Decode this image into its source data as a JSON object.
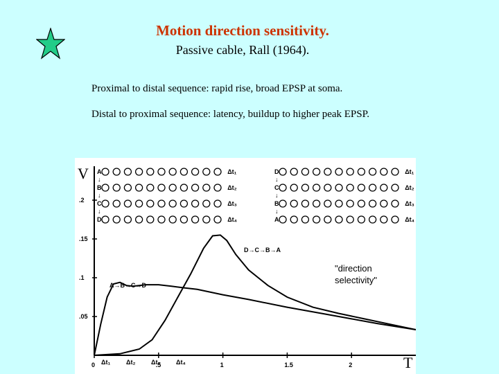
{
  "slide": {
    "title": "Motion direction sensitivity.",
    "subtitle": "Passive cable, Rall (1964).",
    "line1": "Proximal to distal sequence:  rapid rise, broad EPSP at soma.",
    "line2": "Distal to proximal sequence: latency, buildup to higher peak EPSP.",
    "star_icon": "green-star-icon",
    "annotation_line1": "\"direction",
    "annotation_line2": "selectivity\""
  },
  "colors": {
    "background": "#ccffff",
    "title": "#cc3300",
    "star": "#22cc88"
  },
  "figure": {
    "y_axis_symbol": "V",
    "x_axis_symbol": "T",
    "left_panel": {
      "rows": [
        {
          "letter": "A",
          "dt": "Δt₁"
        },
        {
          "letter": "B",
          "dt": "Δt₂"
        },
        {
          "letter": "C",
          "dt": "Δt₃"
        },
        {
          "letter": "D",
          "dt": "Δt₄"
        }
      ]
    },
    "right_panel": {
      "rows": [
        {
          "letter": "D",
          "dt": "Δt₁"
        },
        {
          "letter": "C",
          "dt": "Δt₂"
        },
        {
          "letter": "B",
          "dt": "Δt₃"
        },
        {
          "letter": "A",
          "dt": "Δt₄"
        }
      ]
    },
    "label_abcd": "A→B→C→D",
    "label_dcba": "D→C→B→A"
  },
  "chart_data": {
    "type": "line",
    "xlabel": "T",
    "ylabel": "V",
    "x_ticks": [
      "0",
      ".5",
      "1",
      "1.5",
      "2"
    ],
    "y_ticks": [
      ".05",
      ".1",
      ".15",
      ".2"
    ],
    "xlim": [
      0,
      2.5
    ],
    "ylim": [
      0,
      0.25
    ],
    "series": [
      {
        "name": "A→B→C→D",
        "x": [
          0,
          0.05,
          0.1,
          0.15,
          0.2,
          0.25,
          0.3,
          0.35,
          0.4,
          0.5,
          0.6,
          0.7,
          0.8,
          1.0,
          1.2,
          1.5,
          1.8,
          2.0,
          2.2,
          2.5
        ],
        "y": [
          0,
          0.04,
          0.075,
          0.092,
          0.094,
          0.09,
          0.089,
          0.09,
          0.091,
          0.091,
          0.089,
          0.087,
          0.085,
          0.078,
          0.072,
          0.062,
          0.053,
          0.047,
          0.041,
          0.033
        ]
      },
      {
        "name": "D→C→B→A",
        "x": [
          0,
          0.2,
          0.35,
          0.45,
          0.55,
          0.65,
          0.75,
          0.85,
          0.92,
          0.98,
          1.03,
          1.1,
          1.2,
          1.35,
          1.5,
          1.7,
          1.9,
          2.1,
          2.3,
          2.5
        ],
        "y": [
          0,
          0.002,
          0.008,
          0.02,
          0.045,
          0.075,
          0.105,
          0.138,
          0.154,
          0.155,
          0.148,
          0.13,
          0.11,
          0.09,
          0.075,
          0.062,
          0.054,
          0.047,
          0.04,
          0.033
        ]
      }
    ]
  }
}
